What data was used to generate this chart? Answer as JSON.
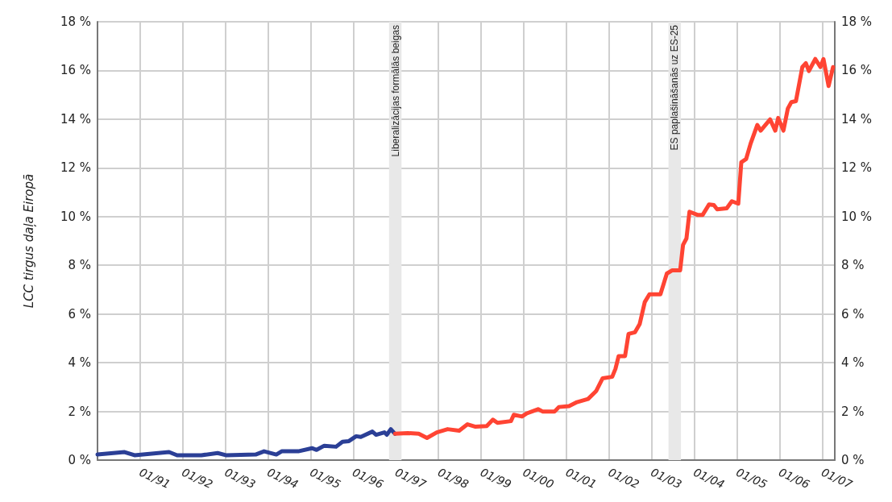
{
  "chart_data": {
    "type": "line",
    "ylabel": "LCC tirgus daļa Eiropā",
    "xlim": [
      "1990-01-01",
      "2007-04-19"
    ],
    "xticks": [
      {
        "value": "1991-01",
        "label": "01/91"
      },
      {
        "value": "1992-01",
        "label": "01/92"
      },
      {
        "value": "1993-01",
        "label": "01/93"
      },
      {
        "value": "1994-01",
        "label": "01/94"
      },
      {
        "value": "1995-01",
        "label": "01/95"
      },
      {
        "value": "1996-01",
        "label": "01/96"
      },
      {
        "value": "1997-01",
        "label": "01/97"
      },
      {
        "value": "1998-01",
        "label": "01/98"
      },
      {
        "value": "1999-01",
        "label": "01/99"
      },
      {
        "value": "2000-01",
        "label": "01/00"
      },
      {
        "value": "2001-01",
        "label": "01/01"
      },
      {
        "value": "2002-01",
        "label": "01/02"
      },
      {
        "value": "2003-01",
        "label": "01/03"
      },
      {
        "value": "2004-01",
        "label": "01/04"
      },
      {
        "value": "2005-01",
        "label": "01/05"
      },
      {
        "value": "2006-01",
        "label": "01/06"
      },
      {
        "value": "2007-01",
        "label": "01/07"
      }
    ],
    "ylim": [
      0,
      18
    ],
    "yticks": [
      {
        "value": 0,
        "label": "0 %"
      },
      {
        "value": 2,
        "label": "2 %"
      },
      {
        "value": 4,
        "label": "4 %"
      },
      {
        "value": 6,
        "label": "6 %"
      },
      {
        "value": 8,
        "label": "8 %"
      },
      {
        "value": 10,
        "label": "10 %"
      },
      {
        "value": 12,
        "label": "12 %"
      },
      {
        "value": 14,
        "label": "14 %"
      },
      {
        "value": 16,
        "label": "16 %"
      },
      {
        "value": 18,
        "label": "18 %"
      }
    ],
    "y2lim": [
      0,
      18
    ],
    "y2ticks": [
      {
        "value": 0,
        "label": "0 %"
      },
      {
        "value": 2,
        "label": "2 %"
      },
      {
        "value": 4,
        "label": "4 %"
      },
      {
        "value": 6,
        "label": "6 %"
      },
      {
        "value": 8,
        "label": "8 %"
      },
      {
        "value": 10,
        "label": "10 %"
      },
      {
        "value": 12,
        "label": "12 %"
      },
      {
        "value": 14,
        "label": "14 %"
      },
      {
        "value": 16,
        "label": "16 %"
      },
      {
        "value": 18,
        "label": "18 %"
      }
    ],
    "grid": true,
    "marker": "none",
    "line_style": "solid",
    "bands": [
      {
        "axis": "x",
        "from": "1996-11-03",
        "to": "1997-02-18",
        "label": "Liberalizācijas formālās beigas",
        "color": "#e8e8e8"
      },
      {
        "axis": "x",
        "from": "2003-05-25",
        "to": "2003-09-09",
        "label": "ES paplašināšanās uz ES-25",
        "color": "#e8e8e8"
      }
    ],
    "series": [
      {
        "color": "#2b3f96",
        "x": [
          "1990-01-01",
          "1990-08-21",
          "1990-11-14",
          "1991-09-06",
          "1991-11-14",
          "1992-06-09",
          "1992-10-26",
          "1993-01-05",
          "1993-09-17",
          "1993-11-28",
          "1994-03-13",
          "1994-04-28",
          "1994-09-17",
          "1995-01-12",
          "1995-02-21",
          "1995-04-28",
          "1995-08-07",
          "1995-10-01",
          "1995-11-25",
          "1996-01-26",
          "1996-03-06",
          "1996-06-13",
          "1996-07-15",
          "1996-09-24",
          "1996-10-15",
          "1996-11-18",
          "1996-12-24"
        ],
        "values": [
          0.23,
          0.33,
          0.2,
          0.33,
          0.2,
          0.2,
          0.29,
          0.2,
          0.23,
          0.36,
          0.23,
          0.36,
          0.36,
          0.49,
          0.42,
          0.59,
          0.55,
          0.75,
          0.78,
          0.98,
          0.95,
          1.17,
          1.04,
          1.14,
          1.04,
          1.27,
          1.08
        ]
      },
      {
        "color": "#ff4433",
        "x": [
          "1996-12-24",
          "1997-04-12",
          "1997-07-15",
          "1997-09-24",
          "1997-12-17",
          "1998-03-20",
          "1998-06-27",
          "1998-09-06",
          "1998-11-14",
          "1999-02-18",
          "1999-04-12",
          "1999-05-21",
          "1999-09-13",
          "1999-10-08",
          "1999-12-17",
          "2000-01-28",
          "2000-05-03",
          "2000-06-13",
          "2000-09-20",
          "2000-10-28",
          "2001-01-23",
          "2001-04-01",
          "2001-07-05",
          "2001-09-13",
          "2001-11-07",
          "2002-01-28",
          "2002-02-25",
          "2002-03-24",
          "2002-05-18",
          "2002-06-17",
          "2002-08-11",
          "2002-09-20",
          "2002-11-03",
          "2002-12-13",
          "2003-03-17",
          "2003-05-11",
          "2003-06-24",
          "2003-09-02",
          "2003-09-27",
          "2003-10-26",
          "2003-11-21",
          "2004-01-28",
          "2004-03-13",
          "2004-05-07",
          "2004-06-17",
          "2004-07-15",
          "2004-10-05",
          "2004-11-18",
          "2005-01-12",
          "2005-02-07",
          "2005-03-20",
          "2005-04-28",
          "2005-06-24",
          "2005-07-23",
          "2005-10-12",
          "2005-11-25",
          "2005-12-20",
          "2006-02-03",
          "2006-03-13",
          "2006-04-12",
          "2006-05-21",
          "2006-07-15",
          "2006-08-14",
          "2006-09-09",
          "2006-11-03",
          "2006-12-17",
          "2007-01-12",
          "2007-02-25",
          "2007-04-04"
        ],
        "values": [
          1.08,
          1.11,
          1.08,
          0.91,
          1.14,
          1.27,
          1.21,
          1.47,
          1.37,
          1.4,
          1.66,
          1.53,
          1.6,
          1.86,
          1.79,
          1.92,
          2.09,
          1.99,
          1.99,
          2.18,
          2.22,
          2.38,
          2.51,
          2.84,
          3.36,
          3.42,
          3.75,
          4.27,
          4.27,
          5.18,
          5.25,
          5.58,
          6.49,
          6.81,
          6.81,
          7.66,
          7.79,
          7.79,
          8.84,
          9.1,
          10.2,
          10.07,
          10.07,
          10.5,
          10.47,
          10.3,
          10.34,
          10.63,
          10.53,
          12.23,
          12.36,
          13.0,
          13.76,
          13.53,
          13.99,
          13.53,
          14.05,
          13.53,
          14.44,
          14.7,
          14.74,
          16.14,
          16.3,
          15.98,
          16.47,
          16.14,
          16.47,
          15.36,
          16.14
        ]
      }
    ]
  }
}
